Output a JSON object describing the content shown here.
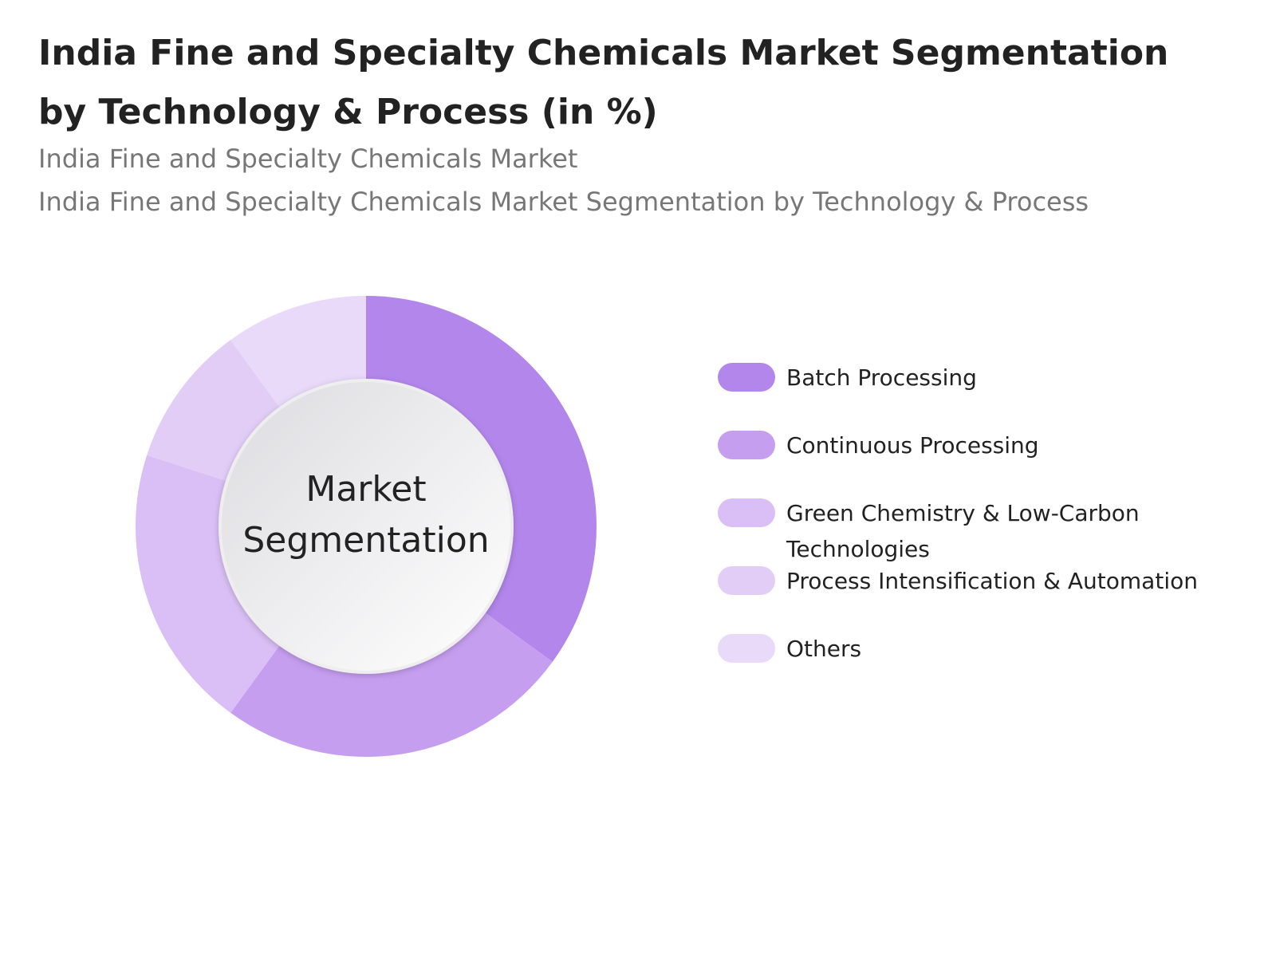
{
  "chart_data": {
    "type": "donut",
    "title": "India Fine and Specialty Chemicals Market Segmentation by Technology & Process (in %)",
    "subtitles": [
      "India Fine and Specialty Chemicals Market",
      "India Fine and Specialty Chemicals Market Segmentation by Technology & Process"
    ],
    "center_label": "Market Segmentation",
    "categories": [
      "Batch Processing",
      "Continuous Processing",
      "Green Chemistry & Low-Carbon Technologies",
      "Process Intensification & Automation",
      "Others"
    ],
    "values": [
      35,
      25,
      20,
      10,
      10
    ],
    "colors": [
      "#b386ec",
      "#c69ef0",
      "#d9bff5",
      "#e2cdf7",
      "#e9dafa"
    ],
    "legend": "right"
  }
}
